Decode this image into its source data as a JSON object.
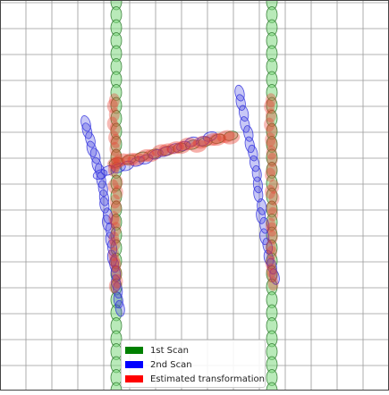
{
  "legend": {
    "items": [
      {
        "label": "1st Scan",
        "color": "#008000"
      },
      {
        "label": "2nd Scan",
        "color": "#0000ff"
      },
      {
        "label": "Estimated transformation",
        "color": "#ff0000"
      }
    ]
  },
  "colors": {
    "grid": "#9a9a9a",
    "first_scan_fill": "#7fd87f",
    "first_scan_edge": "#2f7a2f",
    "second_scan": "#3a3adf",
    "estimated": "#e83a2a"
  }
}
